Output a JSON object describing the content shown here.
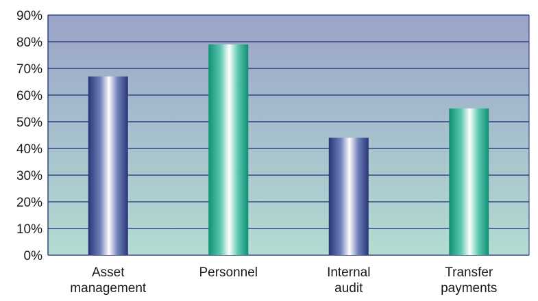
{
  "chart_data": {
    "type": "bar",
    "title": "",
    "xlabel": "",
    "ylabel": "",
    "categories": [
      [
        "Asset",
        "management"
      ],
      [
        "Personnel"
      ],
      [
        "Internal",
        "audit"
      ],
      [
        "Transfer",
        "payments"
      ]
    ],
    "values": [
      67,
      79,
      44,
      55
    ],
    "bar_styles": [
      "blue",
      "teal",
      "blue",
      "teal"
    ],
    "ylim": [
      0,
      90
    ],
    "yticks": [
      0,
      10,
      20,
      30,
      40,
      50,
      60,
      70,
      80,
      90
    ],
    "ytick_labels": [
      "0%",
      "10%",
      "20%",
      "30%",
      "40%",
      "50%",
      "60%",
      "70%",
      "80%",
      "90%"
    ],
    "grid": true,
    "legend": "none",
    "colors": {
      "plot_top": "#9aa4c8",
      "plot_bottom": "#b3dcd2",
      "grid": "#1e2a78",
      "blue_dark": "#2a3578",
      "blue_mid": "#6f7fb8",
      "teal_dark": "#0f8f74",
      "teal_mid": "#5cc8ad",
      "highlight": "#ffffff"
    }
  }
}
